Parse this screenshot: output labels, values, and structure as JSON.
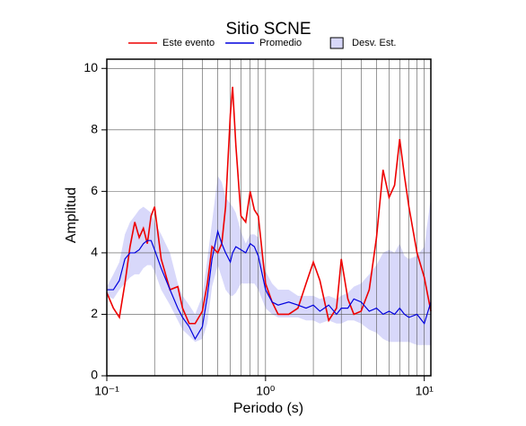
{
  "chart_data": {
    "type": "line",
    "title": "Sitio SCNE",
    "x_label": "Periodo (s)",
    "y_label": "Amplitud",
    "xscale": "log",
    "xlim": [
      0.1,
      11
    ],
    "ylim": [
      0,
      10.3
    ],
    "xticks": [
      {
        "value": 0.1,
        "label": "10⁻¹"
      },
      {
        "value": 1,
        "label": "10⁰"
      },
      {
        "value": 10,
        "label": "10¹"
      }
    ],
    "yticks": [
      0,
      2,
      4,
      6,
      8,
      10
    ],
    "grid": true,
    "legend": "top",
    "x": [
      0.1,
      0.11,
      0.12,
      0.13,
      0.14,
      0.15,
      0.16,
      0.17,
      0.18,
      0.19,
      0.2,
      0.22,
      0.25,
      0.28,
      0.3,
      0.33,
      0.36,
      0.4,
      0.43,
      0.46,
      0.5,
      0.53,
      0.56,
      0.6,
      0.62,
      0.65,
      0.7,
      0.75,
      0.8,
      0.85,
      0.9,
      1.0,
      1.1,
      1.2,
      1.4,
      1.6,
      1.8,
      2.0,
      2.2,
      2.5,
      2.8,
      3.0,
      3.3,
      3.6,
      4.0,
      4.5,
      5.0,
      5.5,
      6.0,
      6.5,
      7.0,
      7.5,
      8.0,
      9.0,
      10,
      11
    ],
    "series": [
      {
        "name": "Este evento",
        "color": "#ee0000",
        "values": [
          2.7,
          2.2,
          1.9,
          3.0,
          4.2,
          5.0,
          4.5,
          4.8,
          4.3,
          5.2,
          5.5,
          3.8,
          2.8,
          2.9,
          2.2,
          1.7,
          1.7,
          2.1,
          3.0,
          4.2,
          4.0,
          4.3,
          5.5,
          8.5,
          9.4,
          7.5,
          5.2,
          5.0,
          6.0,
          5.4,
          5.2,
          3.0,
          2.4,
          2.0,
          2.0,
          2.2,
          3.0,
          3.7,
          3.1,
          1.8,
          2.2,
          3.8,
          2.5,
          2.0,
          2.1,
          2.8,
          4.5,
          6.7,
          5.8,
          6.2,
          7.7,
          6.5,
          5.5,
          4.0,
          3.2,
          2.1
        ]
      },
      {
        "name": "Promedio",
        "color": "#0000dd",
        "values": [
          2.8,
          2.8,
          3.1,
          3.8,
          4.0,
          4.0,
          4.1,
          4.3,
          4.4,
          4.4,
          4.1,
          3.5,
          2.8,
          2.2,
          1.9,
          1.6,
          1.2,
          1.6,
          2.6,
          3.8,
          4.7,
          4.3,
          4.0,
          3.7,
          4.0,
          4.2,
          4.1,
          4.0,
          4.3,
          4.2,
          3.9,
          2.8,
          2.4,
          2.3,
          2.4,
          2.3,
          2.2,
          2.3,
          2.1,
          2.3,
          2.0,
          2.2,
          2.2,
          2.5,
          2.4,
          2.1,
          2.2,
          2.0,
          2.1,
          2.0,
          2.2,
          2.0,
          1.9,
          2.0,
          1.7,
          2.4
        ]
      }
    ],
    "band": {
      "name": "Desv. Est.",
      "color": "#d8d8fa",
      "upper": [
        2.9,
        3.3,
        3.7,
        4.6,
        5.0,
        5.2,
        5.4,
        5.5,
        5.4,
        5.3,
        5.0,
        4.6,
        4.0,
        3.0,
        2.6,
        2.3,
        2.0,
        2.6,
        3.8,
        5.0,
        6.5,
        6.3,
        5.8,
        5.6,
        5.5,
        5.3,
        4.7,
        4.3,
        4.6,
        4.6,
        4.5,
        3.4,
        3.0,
        2.8,
        2.8,
        2.6,
        2.6,
        2.6,
        2.5,
        2.6,
        2.5,
        2.6,
        2.7,
        2.9,
        3.0,
        3.3,
        3.6,
        4.0,
        4.1,
        4.0,
        4.3,
        3.9,
        3.8,
        3.9,
        4.2,
        5.8
      ],
      "lower": [
        2.6,
        2.5,
        2.8,
        3.0,
        3.2,
        3.3,
        3.3,
        3.5,
        3.6,
        3.6,
        3.4,
        2.8,
        2.3,
        1.8,
        1.5,
        1.3,
        1.1,
        1.2,
        1.7,
        2.9,
        3.6,
        3.2,
        2.8,
        2.6,
        2.6,
        2.7,
        3.0,
        3.0,
        3.0,
        3.0,
        2.8,
        2.2,
        2.0,
        1.9,
        1.9,
        1.9,
        1.8,
        1.8,
        1.7,
        1.8,
        1.7,
        1.7,
        1.8,
        1.8,
        1.7,
        1.5,
        1.4,
        1.2,
        1.1,
        1.1,
        1.1,
        1.1,
        1.1,
        1.0,
        1.0,
        1.0
      ]
    }
  }
}
